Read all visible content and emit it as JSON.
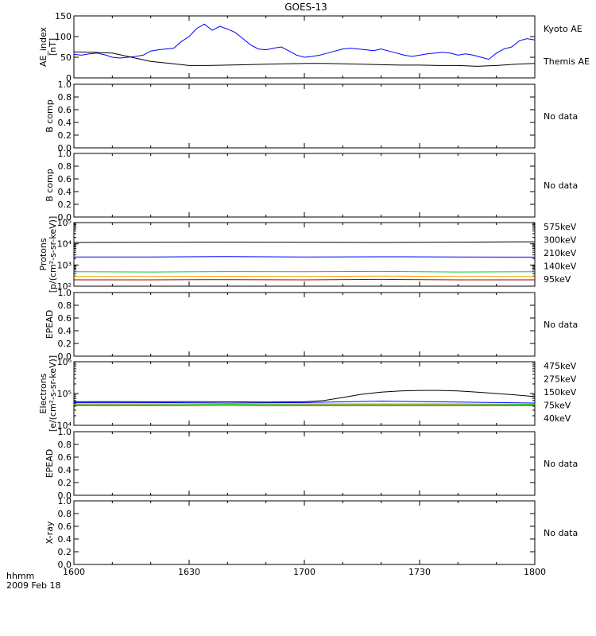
{
  "title": "GOES-13",
  "x_axis": {
    "tick_labels": [
      "1600",
      "1630",
      "1700",
      "1730",
      "1800"
    ],
    "tick_values": [
      0,
      30,
      60,
      90,
      120
    ],
    "range": [
      0,
      120
    ],
    "left_label": "hhmm",
    "date_label": "2009 Feb 18"
  },
  "no_data_text": "No data",
  "colors": {
    "black": "#000000",
    "blue": "#0000ff",
    "green": "#00cc33",
    "orange": "#ff9900",
    "darkred": "#990000"
  },
  "chart_data": [
    {
      "id": "ae",
      "type": "line",
      "ylabel": "AE_index\n[nT]",
      "ylim": [
        0,
        150
      ],
      "yticks": [
        "0",
        "50",
        "100",
        "150"
      ],
      "ytick_values": [
        0,
        50,
        100,
        150
      ],
      "series": [
        {
          "name": "Kyoto AE",
          "color": "#0000ff",
          "x": [
            0,
            2,
            4,
            6,
            8,
            10,
            12,
            14,
            16,
            18,
            20,
            22,
            24,
            26,
            28,
            30,
            32,
            34,
            36,
            38,
            40,
            42,
            44,
            46,
            48,
            50,
            52,
            54,
            56,
            58,
            60,
            62,
            64,
            66,
            68,
            70,
            72,
            74,
            76,
            78,
            80,
            82,
            84,
            86,
            88,
            90,
            92,
            94,
            96,
            98,
            100,
            102,
            104,
            106,
            108,
            110,
            112,
            114,
            116,
            118,
            120
          ],
          "values": [
            57,
            55,
            58,
            60,
            56,
            50,
            48,
            50,
            52,
            55,
            65,
            68,
            70,
            72,
            88,
            100,
            120,
            130,
            115,
            125,
            118,
            110,
            95,
            80,
            70,
            68,
            72,
            75,
            65,
            55,
            50,
            52,
            55,
            60,
            65,
            70,
            72,
            70,
            68,
            66,
            70,
            65,
            60,
            55,
            52,
            55,
            58,
            60,
            62,
            60,
            55,
            58,
            55,
            50,
            45,
            60,
            70,
            75,
            90,
            95,
            92
          ]
        },
        {
          "name": "Themis AE",
          "color": "#000000",
          "x": [
            0,
            5,
            10,
            15,
            20,
            25,
            30,
            35,
            40,
            45,
            50,
            55,
            60,
            65,
            70,
            75,
            80,
            85,
            90,
            95,
            100,
            105,
            110,
            115,
            120
          ],
          "values": [
            63,
            62,
            60,
            50,
            40,
            35,
            30,
            30,
            31,
            32,
            33,
            34,
            35,
            35,
            34,
            33,
            32,
            31,
            31,
            30,
            30,
            28,
            30,
            33,
            35
          ]
        }
      ]
    },
    {
      "id": "b1",
      "type": "line",
      "ylabel": "B comp",
      "ylim": [
        0,
        1
      ],
      "yticks": [
        "0.0",
        "0.2",
        "0.4",
        "0.6",
        "0.8",
        "1.0"
      ],
      "ytick_values": [
        0,
        0.2,
        0.4,
        0.6,
        0.8,
        1.0
      ],
      "series": []
    },
    {
      "id": "b2",
      "type": "line",
      "ylabel": "B comp",
      "ylim": [
        0,
        1
      ],
      "yticks": [
        "0.0",
        "0.2",
        "0.4",
        "0.6",
        "0.8",
        "1.0"
      ],
      "ytick_values": [
        0,
        0.2,
        0.4,
        0.6,
        0.8,
        1.0
      ],
      "series": []
    },
    {
      "id": "protons",
      "type": "line",
      "log_scale": true,
      "ylabel": "Protons\n[p/(cm²-s-sr-keV)]",
      "ylim": [
        100,
        100000
      ],
      "yticks": [
        "10²",
        "10³",
        "10⁴",
        "10⁵"
      ],
      "ytick_values": [
        100,
        1000,
        10000,
        100000
      ],
      "series": [
        {
          "name": "575keV",
          "color": "#990000",
          "x": [
            0,
            20,
            40,
            60,
            80,
            100,
            120
          ],
          "values": [
            200,
            200,
            205,
            200,
            210,
            200,
            200
          ]
        },
        {
          "name": "300keV",
          "color": "#ff9900",
          "x": [
            0,
            20,
            40,
            60,
            80,
            100,
            120
          ],
          "values": [
            290,
            290,
            295,
            290,
            300,
            290,
            290
          ]
        },
        {
          "name": "210keV",
          "color": "#00cc33",
          "x": [
            0,
            20,
            40,
            60,
            80,
            100,
            120
          ],
          "values": [
            480,
            470,
            490,
            480,
            500,
            470,
            480
          ]
        },
        {
          "name": "140keV",
          "color": "#0000ff",
          "x": [
            0,
            20,
            40,
            60,
            80,
            100,
            120
          ],
          "values": [
            2400,
            2400,
            2500,
            2400,
            2450,
            2400,
            2350
          ]
        },
        {
          "name": "95keV",
          "color": "#000000",
          "x": [
            0,
            20,
            40,
            60,
            80,
            100,
            120
          ],
          "values": [
            11500,
            11800,
            12000,
            11800,
            11500,
            12000,
            12500
          ]
        }
      ]
    },
    {
      "id": "epead1",
      "type": "line",
      "ylabel": "EPEAD",
      "ylim": [
        0,
        1
      ],
      "yticks": [
        "0.0",
        "0.2",
        "0.4",
        "0.6",
        "0.8",
        "1.0"
      ],
      "ytick_values": [
        0,
        0.2,
        0.4,
        0.6,
        0.8,
        1.0
      ],
      "series": []
    },
    {
      "id": "electrons",
      "type": "line",
      "log_scale": true,
      "ylabel": "Electrons\n[e/(cm²-s-sr-keV)]",
      "ylim": [
        10000,
        1000000
      ],
      "yticks": [
        "10⁴",
        "10⁵",
        "10⁶"
      ],
      "ytick_values": [
        10000,
        100000,
        1000000
      ],
      "series": [
        {
          "name": "475keV",
          "color": "#990000",
          "x": [
            0,
            20,
            40,
            60,
            80,
            100,
            120
          ],
          "values": [
            42000,
            42000,
            42000,
            42000,
            42000,
            42000,
            42000
          ]
        },
        {
          "name": "275keV",
          "color": "#ff9900",
          "x": [
            0,
            20,
            40,
            60,
            80,
            100,
            120
          ],
          "values": [
            44000,
            44000,
            43000,
            44000,
            44000,
            44000,
            44000
          ]
        },
        {
          "name": "150keV",
          "color": "#00cc33",
          "x": [
            0,
            20,
            40,
            60,
            80,
            100,
            120
          ],
          "values": [
            47000,
            47000,
            46000,
            47000,
            47000,
            47000,
            46000
          ]
        },
        {
          "name": "75keV",
          "color": "#0000ff",
          "x": [
            0,
            20,
            40,
            60,
            80,
            100,
            120
          ],
          "values": [
            52000,
            52000,
            50000,
            52000,
            58000,
            54000,
            50000
          ]
        },
        {
          "name": "40keV",
          "color": "#000000",
          "x": [
            0,
            10,
            20,
            30,
            40,
            50,
            60,
            65,
            70,
            75,
            80,
            85,
            90,
            95,
            100,
            105,
            110,
            115,
            120
          ],
          "values": [
            55000,
            56000,
            55000,
            56000,
            55000,
            54000,
            55000,
            60000,
            75000,
            95000,
            110000,
            120000,
            125000,
            125000,
            120000,
            110000,
            100000,
            90000,
            80000
          ]
        }
      ]
    },
    {
      "id": "epead2",
      "type": "line",
      "ylabel": "EPEAD",
      "ylim": [
        0,
        1
      ],
      "yticks": [
        "0.0",
        "0.2",
        "0.4",
        "0.6",
        "0.8",
        "1.0"
      ],
      "ytick_values": [
        0,
        0.2,
        0.4,
        0.6,
        0.8,
        1.0
      ],
      "series": []
    },
    {
      "id": "xray",
      "type": "line",
      "ylabel": "X-ray",
      "ylim": [
        0,
        1
      ],
      "yticks": [
        "0.0",
        "0.2",
        "0.4",
        "0.6",
        "0.8",
        "1.0"
      ],
      "ytick_values": [
        0,
        0.2,
        0.4,
        0.6,
        0.8,
        1.0
      ],
      "series": []
    }
  ]
}
